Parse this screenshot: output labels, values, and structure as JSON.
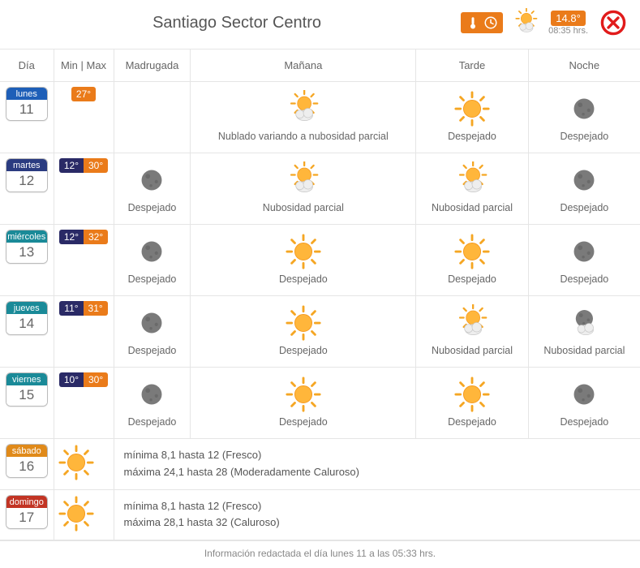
{
  "header": {
    "title": "Santiago Sector Centro",
    "current_temp": "14.8°",
    "current_time": "08:35 hrs.",
    "current_icon": "partly-cloudy-day",
    "badge_icon": "thermo-clock"
  },
  "columns": {
    "day": "Día",
    "minmax": "Min | Max",
    "periods": [
      "Madrugada",
      "Mañana",
      "Tarde",
      "Noche"
    ]
  },
  "day_colors": {
    "lunes": "dow-blue",
    "martes": "dow-dblue",
    "miércoles": "dow-teal",
    "jueves": "dow-teal",
    "viernes": "dow-teal",
    "sábado": "dow-orange",
    "domingo": "dow-red"
  },
  "colors": {
    "accent_orange": "#ea7b1a",
    "min_bg": "#2a2a66",
    "border": "#e5e5e5",
    "text": "#555555",
    "close_red": "#e11b1b",
    "sun": "#f5a623",
    "sun_core": "#ffb63b",
    "cloud": "#e6e6e6",
    "cloud_edge": "#c7c7c7",
    "moon": "#7a7a7a"
  },
  "days": [
    {
      "dow": "lunes",
      "dnum": "11",
      "min": null,
      "max": "27°",
      "periods": [
        null,
        {
          "icon": "partly-cloudy-day",
          "label": "Nublado variando a nubosidad parcial"
        },
        {
          "icon": "sunny",
          "label": "Despejado"
        },
        {
          "icon": "clear-night",
          "label": "Despejado"
        }
      ]
    },
    {
      "dow": "martes",
      "dnum": "12",
      "min": "12°",
      "max": "30°",
      "periods": [
        {
          "icon": "clear-night",
          "label": "Despejado"
        },
        {
          "icon": "partly-cloudy-day",
          "label": "Nubosidad parcial"
        },
        {
          "icon": "partly-cloudy-day",
          "label": "Nubosidad parcial"
        },
        {
          "icon": "clear-night",
          "label": "Despejado"
        }
      ]
    },
    {
      "dow": "miércoles",
      "dnum": "13",
      "min": "12°",
      "max": "32°",
      "periods": [
        {
          "icon": "clear-night",
          "label": "Despejado"
        },
        {
          "icon": "sunny",
          "label": "Despejado"
        },
        {
          "icon": "sunny",
          "label": "Despejado"
        },
        {
          "icon": "clear-night",
          "label": "Despejado"
        }
      ]
    },
    {
      "dow": "jueves",
      "dnum": "14",
      "min": "11°",
      "max": "31°",
      "periods": [
        {
          "icon": "clear-night",
          "label": "Despejado"
        },
        {
          "icon": "sunny",
          "label": "Despejado"
        },
        {
          "icon": "partly-cloudy-day",
          "label": "Nubosidad parcial"
        },
        {
          "icon": "partly-cloudy-night",
          "label": "Nubosidad parcial"
        }
      ]
    },
    {
      "dow": "viernes",
      "dnum": "15",
      "min": "10°",
      "max": "30°",
      "periods": [
        {
          "icon": "clear-night",
          "label": "Despejado"
        },
        {
          "icon": "sunny",
          "label": "Despejado"
        },
        {
          "icon": "sunny",
          "label": "Despejado"
        },
        {
          "icon": "clear-night",
          "label": "Despejado"
        }
      ]
    }
  ],
  "weekend": [
    {
      "dow": "sábado",
      "dnum": "16",
      "icon": "sunny",
      "line1": "mínima 8,1 hasta 12 (Fresco)",
      "line2": "máxima 24,1 hasta 28 (Moderadamente Caluroso)"
    },
    {
      "dow": "domingo",
      "dnum": "17",
      "icon": "sunny",
      "line1": "mínima 8,1 hasta 12 (Fresco)",
      "line2": "máxima 28,1 hasta 32 (Caluroso)"
    }
  ],
  "footer": "Información redactada el día lunes 11 a las 05:33 hrs."
}
